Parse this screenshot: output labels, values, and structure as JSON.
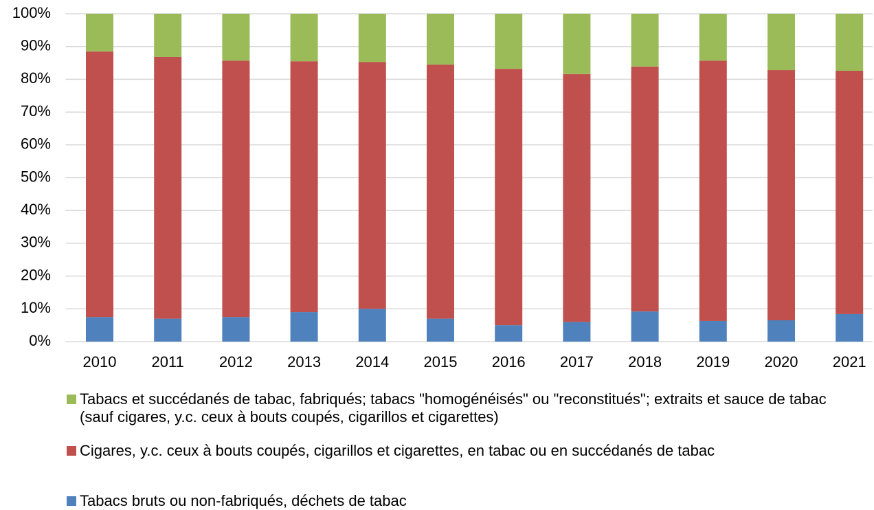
{
  "chart_data": {
    "type": "stacked-bar",
    "categories": [
      "2010",
      "2011",
      "2012",
      "2013",
      "2014",
      "2015",
      "2016",
      "2017",
      "2018",
      "2019",
      "2020",
      "2021"
    ],
    "series": [
      {
        "name": "Tabacs bruts ou non-fabriqués, déchets de tabac",
        "color": "#4f81bd",
        "values": [
          7.5,
          7,
          7.5,
          9,
          10,
          7,
          5,
          6,
          9.2,
          6.3,
          6.5,
          8.4
        ]
      },
      {
        "name": "Cigares, y.c. ceux à bouts coupés, cigarillos et cigarettes, en tabac ou en succédanés de tabac",
        "color": "#c0504d",
        "values": [
          81,
          79.8,
          78.2,
          76.5,
          75.3,
          77.5,
          78.2,
          75.6,
          74.7,
          79.4,
          76.3,
          74.2
        ]
      },
      {
        "name": "Tabacs et succédanés de tabac, fabriqués; tabacs \"homogénéisés\" ou \"reconstitués\"; extraits et sauce de tabac (sauf cigares, y.c. ceux à bouts coupés, cigarillos et cigarettes)",
        "color": "#9bbb59",
        "values": [
          11.5,
          13.2,
          14.3,
          14.5,
          14.7,
          15.5,
          16.8,
          18.4,
          16.1,
          14.3,
          17.2,
          17.4
        ]
      }
    ],
    "ylim": [
      0,
      100
    ],
    "yticks": [
      {
        "value": 0,
        "label": "0%"
      },
      {
        "value": 10,
        "label": "10%"
      },
      {
        "value": 20,
        "label": "20%"
      },
      {
        "value": 30,
        "label": "30%"
      },
      {
        "value": 40,
        "label": "40%"
      },
      {
        "value": 50,
        "label": "50%"
      },
      {
        "value": 60,
        "label": "60%"
      },
      {
        "value": 70,
        "label": "70%"
      },
      {
        "value": 80,
        "label": "80%"
      },
      {
        "value": 90,
        "label": "90%"
      },
      {
        "value": 100,
        "label": "100%"
      }
    ],
    "grid": true,
    "legend": "bottom"
  }
}
